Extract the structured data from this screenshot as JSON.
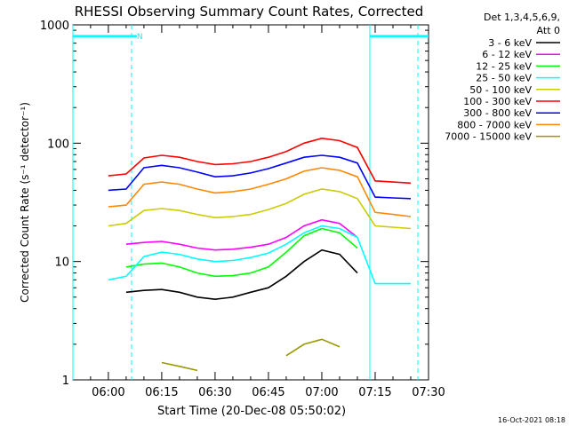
{
  "chart_data": {
    "type": "line",
    "title": "RHESSI Observing Summary Count Rates, Corrected",
    "xlabel": "Start Time (20-Dec-08 05:50:02)",
    "ylabel": "Corrected Count Rate (s⁻¹ detector⁻¹)",
    "y_scale": "log",
    "xlim": [
      "05:50:02",
      "07:30:00"
    ],
    "ylim": [
      1,
      1000
    ],
    "x_ticks": [
      "06:00",
      "06:15",
      "06:30",
      "06:45",
      "07:00",
      "07:15",
      "07:30"
    ],
    "y_ticks": [
      "1",
      "10",
      "100",
      "1000"
    ],
    "legend": {
      "placement": "right",
      "header": [
        "Det 1,3,4,5,6,9,",
        "Att 0"
      ]
    },
    "attenuator_marker": {
      "label": "N",
      "level": 800,
      "segments": [
        [
          "05:50:02",
          "06:06:30"
        ],
        [
          "06:06:30",
          "06:08:00"
        ],
        [
          "07:13:30",
          "07:30:00"
        ]
      ]
    },
    "vertical_markers": [
      "05:50:02",
      "06:06:30",
      "07:13:30",
      "07:27:00"
    ],
    "x": [
      "06:00",
      "06:05",
      "06:10",
      "06:15",
      "06:20",
      "06:25",
      "06:30",
      "06:35",
      "06:40",
      "06:45",
      "06:50",
      "06:55",
      "07:00",
      "07:05",
      "07:10",
      "07:15",
      "07:20",
      "07:25"
    ],
    "series": [
      {
        "name": "3 - 6 keV",
        "color": "#000000",
        "values": [
          null,
          5.5,
          5.7,
          5.8,
          5.5,
          5.0,
          4.8,
          5.0,
          5.5,
          6.0,
          7.5,
          10.0,
          12.5,
          11.5,
          8.0,
          null,
          null,
          null
        ]
      },
      {
        "name": "6 - 12 keV",
        "color": "#ff00ff",
        "values": [
          null,
          14.0,
          14.5,
          14.8,
          14.0,
          13.0,
          12.5,
          12.7,
          13.2,
          14.0,
          16.0,
          20.0,
          22.5,
          21.0,
          16.0,
          null,
          null,
          null
        ]
      },
      {
        "name": "12 - 25 keV",
        "color": "#00ff00",
        "values": [
          null,
          9.0,
          9.5,
          9.7,
          9.0,
          8.0,
          7.5,
          7.6,
          8.0,
          9.0,
          12.0,
          16.5,
          19.0,
          17.5,
          13.0,
          null,
          null,
          null
        ]
      },
      {
        "name": "25 - 50 keV",
        "color": "#00ffff",
        "values": [
          7.0,
          7.5,
          11.0,
          12.0,
          11.5,
          10.5,
          10.0,
          10.2,
          10.8,
          11.8,
          14.0,
          17.5,
          20.0,
          19.0,
          16.0,
          6.5,
          6.5,
          6.5
        ]
      },
      {
        "name": "50 - 100 keV",
        "color": "#cccc00",
        "values": [
          20.0,
          21.0,
          27.0,
          28.0,
          27.0,
          25.0,
          23.5,
          24.0,
          25.0,
          27.5,
          31.0,
          37.0,
          41.0,
          39.0,
          34.0,
          20.0,
          19.5,
          19.0
        ]
      },
      {
        "name": "100 - 300 keV",
        "color": "#ff0000",
        "values": [
          53.0,
          55.0,
          75.0,
          79.0,
          76.0,
          70.0,
          66.0,
          67.0,
          70.0,
          76.0,
          85.0,
          100.0,
          110.0,
          105.0,
          92.0,
          48.0,
          47.0,
          46.0
        ]
      },
      {
        "name": "300 - 800 keV",
        "color": "#0000ff",
        "values": [
          40.0,
          41.0,
          62.0,
          65.0,
          62.0,
          57.0,
          52.0,
          53.0,
          56.0,
          61.0,
          68.0,
          76.0,
          79.0,
          76.0,
          68.0,
          35.0,
          34.5,
          34.0
        ]
      },
      {
        "name": "800 - 7000 keV",
        "color": "#ff8800",
        "values": [
          29.0,
          30.0,
          45.0,
          47.0,
          45.0,
          41.0,
          38.0,
          39.0,
          41.0,
          45.0,
          50.0,
          58.0,
          62.0,
          59.0,
          52.0,
          26.0,
          25.0,
          24.0
        ]
      },
      {
        "name": "7000 - 15000 keV",
        "color": "#999900",
        "values": [
          null,
          null,
          null,
          1.4,
          1.3,
          1.2,
          null,
          null,
          null,
          null,
          1.6,
          2.0,
          2.2,
          1.9,
          null,
          null,
          null,
          null
        ]
      }
    ]
  },
  "footer": {
    "timestamp": "16-Oct-2021 08:18"
  }
}
